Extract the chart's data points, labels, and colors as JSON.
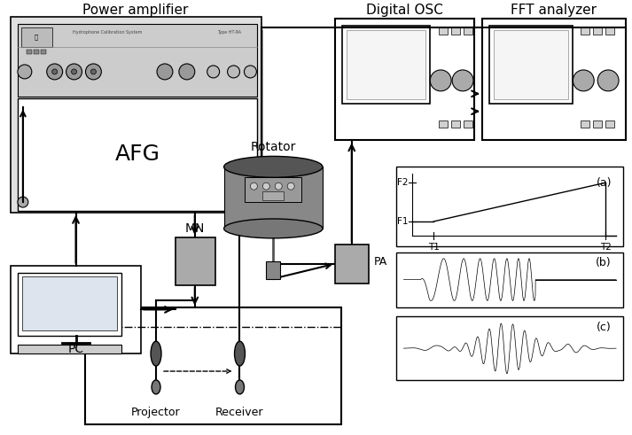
{
  "bg_color": "#ffffff",
  "line_color": "#000000",
  "labels": {
    "power_amp": "Power amplifier",
    "afg": "AFG",
    "digital_osc": "Digital OSC",
    "fft_analyzer": "FFT analyzer",
    "rotator": "Rotator",
    "mn": "MN",
    "pa": "PA",
    "pc": "PC",
    "projector": "Projector",
    "receiver": "Receiver",
    "a_label": "(a)",
    "b_label": "(b)",
    "c_label": "(c)",
    "f1": "F1",
    "f2": "F2",
    "t1": "T1",
    "t2": "T2"
  }
}
